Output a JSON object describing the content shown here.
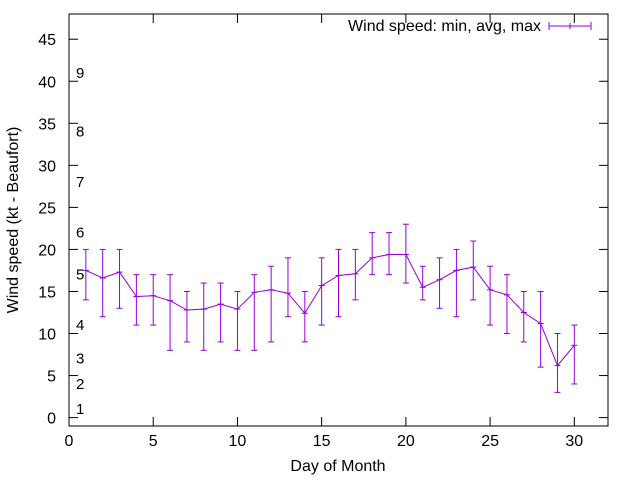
{
  "chart_data": {
    "type": "line",
    "title": "",
    "xlabel": "Day of Month",
    "ylabel": "Wind speed (kt - Beaufort)",
    "xlim": [
      0,
      32
    ],
    "ylim": [
      -1,
      48
    ],
    "x_ticks": [
      0,
      5,
      10,
      15,
      20,
      25,
      30
    ],
    "y_ticks": [
      0,
      5,
      10,
      15,
      20,
      25,
      30,
      35,
      40,
      45
    ],
    "grid": false,
    "legend_position": "top-right",
    "series": [
      {
        "name": "Wind speed: min, avg, max",
        "color": "#9400d3",
        "style": "line with error bars",
        "x": [
          1,
          2,
          3,
          4,
          5,
          6,
          7,
          8,
          9,
          10,
          11,
          12,
          13,
          14,
          15,
          16,
          17,
          18,
          19,
          20,
          21,
          22,
          23,
          24,
          25,
          26,
          27,
          28,
          29,
          30
        ],
        "avg": [
          17.5,
          16.6,
          17.3,
          14.4,
          14.5,
          13.9,
          12.8,
          12.9,
          13.5,
          12.9,
          14.9,
          15.2,
          14.8,
          12.4,
          15.7,
          16.9,
          17.1,
          19.0,
          19.4,
          19.4,
          15.5,
          16.4,
          17.5,
          17.9,
          15.2,
          14.6,
          12.5,
          11.2,
          6.2,
          8.6
        ],
        "min": [
          14,
          12,
          13,
          11,
          11,
          8,
          9,
          8,
          9,
          8,
          8,
          9,
          12,
          9,
          11,
          12,
          14,
          17,
          17,
          16,
          14,
          13,
          12,
          14,
          11,
          10,
          9,
          6,
          3,
          4
        ],
        "max": [
          20,
          20,
          20,
          17,
          17,
          17,
          15,
          16,
          16,
          15,
          17,
          18,
          19,
          15,
          19,
          20,
          20,
          22,
          22,
          23,
          18,
          19,
          20,
          21,
          18,
          17,
          15,
          15,
          10,
          11
        ]
      }
    ],
    "annotations": [
      {
        "text": "1",
        "y": 1
      },
      {
        "text": "2",
        "y": 4
      },
      {
        "text": "3",
        "y": 7
      },
      {
        "text": "4",
        "y": 11
      },
      {
        "text": "5",
        "y": 17
      },
      {
        "text": "6",
        "y": 22
      },
      {
        "text": "7",
        "y": 28
      },
      {
        "text": "8",
        "y": 34
      },
      {
        "text": "9",
        "y": 41
      }
    ]
  }
}
